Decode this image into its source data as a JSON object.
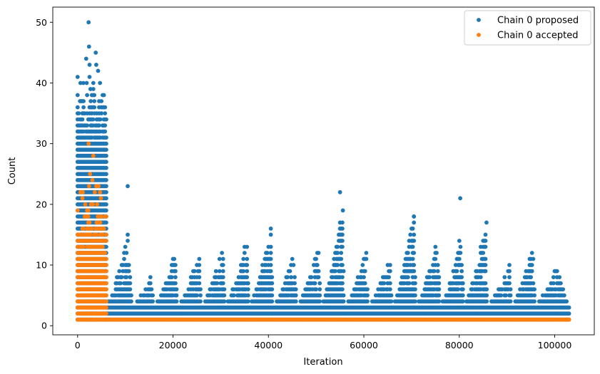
{
  "chart_data": {
    "type": "scatter",
    "title": "",
    "xlabel": "Iteration",
    "ylabel": "Count",
    "xlim": [
      -5200,
      108300
    ],
    "ylim": [
      -1.5,
      52.5
    ],
    "xticks": [
      0,
      20000,
      40000,
      60000,
      80000,
      100000
    ],
    "xtick_labels": [
      "0",
      "20000",
      "40000",
      "60000",
      "80000",
      "100000"
    ],
    "yticks": [
      0,
      10,
      20,
      30,
      40,
      50
    ],
    "ytick_labels": [
      "0",
      "10",
      "20",
      "30",
      "40",
      "50"
    ],
    "grid": false,
    "legend_position": "top-right",
    "x_max": 103000,
    "series": [
      {
        "name": "Chain 0 proposed",
        "color": "#1f77b4",
        "marker": "circle",
        "dense_bands": [
          {
            "x_start": 0,
            "x_end": 6000,
            "y_min": 1,
            "y_max": 38
          },
          {
            "x_start": 6000,
            "x_end": 103000,
            "y_min": 1,
            "y_max": 3
          }
        ],
        "cycle_envelopes": [
          {
            "x_start": 6000,
            "x_peak": 10500,
            "x_end": 11500,
            "y_peak": 15
          },
          {
            "x_start": 11500,
            "x_peak": 15500,
            "x_end": 16000,
            "y_peak": 8
          },
          {
            "x_start": 16000,
            "x_peak": 20500,
            "x_end": 21000,
            "y_peak": 12
          },
          {
            "x_start": 21000,
            "x_peak": 25500,
            "x_end": 26000,
            "y_peak": 12
          },
          {
            "x_start": 26000,
            "x_peak": 30500,
            "x_end": 31000,
            "y_peak": 13
          },
          {
            "x_start": 31000,
            "x_peak": 35500,
            "x_end": 36000,
            "y_peak": 15
          },
          {
            "x_start": 36000,
            "x_peak": 40500,
            "x_end": 41000,
            "y_peak": 16
          },
          {
            "x_start": 41000,
            "x_peak": 45500,
            "x_end": 46000,
            "y_peak": 12
          },
          {
            "x_start": 46000,
            "x_peak": 50500,
            "x_end": 51000,
            "y_peak": 13
          },
          {
            "x_start": 51000,
            "x_peak": 55500,
            "x_end": 56000,
            "y_peak": 19
          },
          {
            "x_start": 56000,
            "x_peak": 60500,
            "x_end": 61000,
            "y_peak": 12
          },
          {
            "x_start": 61000,
            "x_peak": 65500,
            "x_end": 66000,
            "y_peak": 11
          },
          {
            "x_start": 66000,
            "x_peak": 70500,
            "x_end": 71000,
            "y_peak": 19
          },
          {
            "x_start": 71000,
            "x_peak": 75500,
            "x_end": 76000,
            "y_peak": 15
          },
          {
            "x_start": 76000,
            "x_peak": 80500,
            "x_end": 81000,
            "y_peak": 14
          },
          {
            "x_start": 81000,
            "x_peak": 85500,
            "x_end": 86000,
            "y_peak": 17
          },
          {
            "x_start": 86000,
            "x_peak": 90500,
            "x_end": 91000,
            "y_peak": 10
          },
          {
            "x_start": 91000,
            "x_peak": 95500,
            "x_end": 96000,
            "y_peak": 13
          },
          {
            "x_start": 96000,
            "x_peak": 100500,
            "x_end": 103000,
            "y_peak": 10
          }
        ],
        "outliers": [
          [
            2300,
            50
          ],
          [
            2400,
            46
          ],
          [
            3800,
            45
          ],
          [
            1800,
            44
          ],
          [
            2500,
            43
          ],
          [
            3900,
            43
          ],
          [
            4300,
            42
          ],
          [
            0,
            41
          ],
          [
            2500,
            41
          ],
          [
            600,
            40
          ],
          [
            1200,
            40
          ],
          [
            1900,
            40
          ],
          [
            3300,
            40
          ],
          [
            4700,
            40
          ],
          [
            2700,
            39
          ],
          [
            3300,
            39
          ],
          [
            10500,
            23
          ],
          [
            55000,
            22
          ],
          [
            55600,
            19
          ],
          [
            80200,
            21
          ],
          [
            85700,
            17
          ],
          [
            80000,
            14
          ],
          [
            70500,
            18
          ]
        ]
      },
      {
        "name": "Chain 0 accepted",
        "color": "#ff7f0e",
        "marker": "circle",
        "dense_bands": [
          {
            "x_start": 0,
            "x_end": 6000,
            "y_min": 1,
            "y_max": 19
          },
          {
            "x_start": 6000,
            "x_end": 103000,
            "y_min": 1,
            "y_max": 1
          }
        ],
        "outliers": [
          [
            2300,
            30
          ],
          [
            3300,
            28
          ],
          [
            2600,
            25
          ],
          [
            3100,
            24
          ],
          [
            2400,
            23
          ],
          [
            3900,
            23
          ],
          [
            4400,
            23
          ],
          [
            600,
            22
          ],
          [
            1100,
            22
          ],
          [
            3600,
            22
          ],
          [
            4700,
            22
          ],
          [
            1000,
            21
          ],
          [
            4900,
            21
          ],
          [
            1600,
            20
          ],
          [
            2800,
            20
          ],
          [
            3200,
            20
          ],
          [
            4100,
            20
          ]
        ]
      }
    ]
  }
}
